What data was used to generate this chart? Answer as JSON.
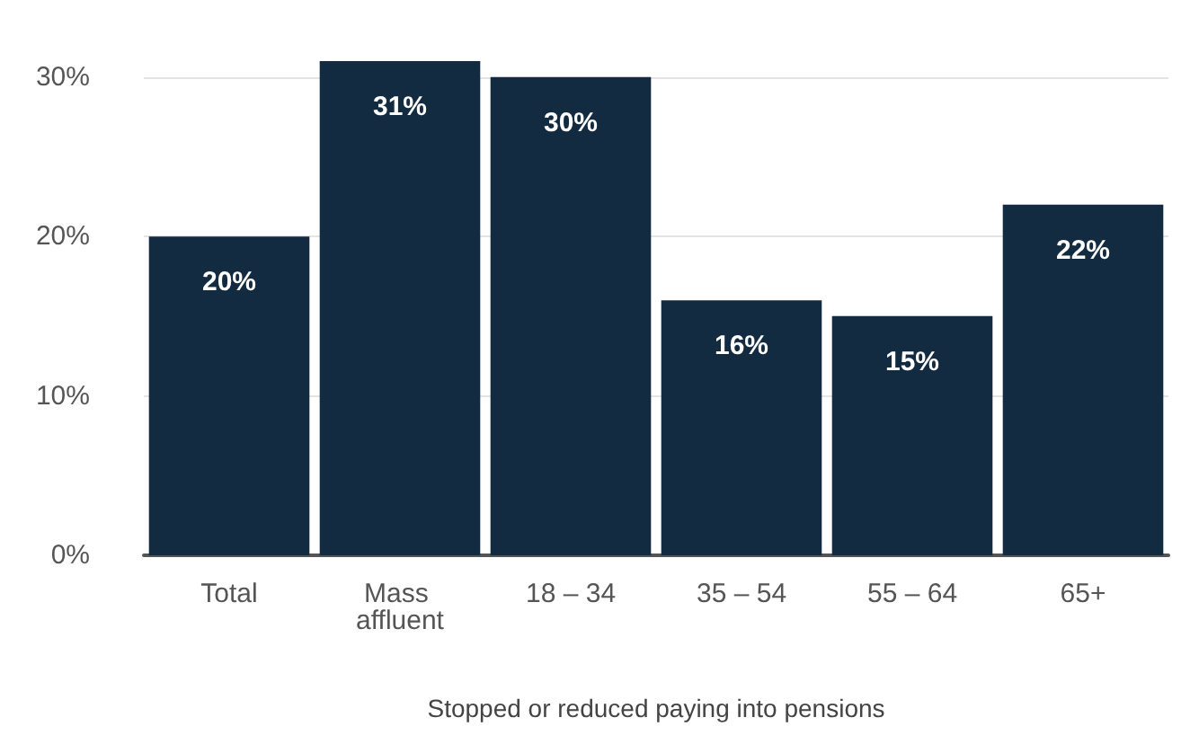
{
  "chart_data": {
    "type": "bar",
    "xlabel": "Stopped or reduced paying into pensions",
    "categories": [
      "Total",
      "Mass affluent",
      "18 – 34",
      "35 – 54",
      "55 – 64",
      "65+"
    ],
    "values": [
      20,
      31,
      30,
      16,
      15,
      22
    ],
    "color": "#132b40",
    "ylim": [
      0,
      31
    ],
    "yticks": [
      {
        "value": 0,
        "label": "0%"
      },
      {
        "value": 10,
        "label": "10%"
      },
      {
        "value": 20,
        "label": "20%"
      },
      {
        "value": 30,
        "label": "30%"
      }
    ],
    "value_labels": [
      "20%",
      "31%",
      "30%",
      "16%",
      "15%",
      "22%"
    ],
    "grid": "y"
  }
}
